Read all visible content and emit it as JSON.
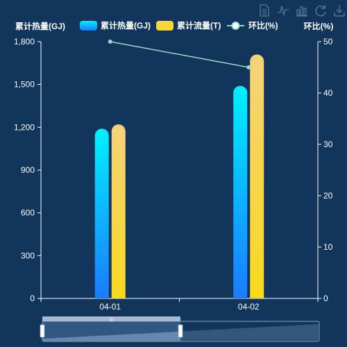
{
  "toolbox": [
    {
      "name": "data-view",
      "icon": "data-view-icon"
    },
    {
      "name": "line-switch",
      "icon": "line-chart-icon"
    },
    {
      "name": "bar-switch",
      "icon": "bar-chart-icon"
    },
    {
      "name": "restore",
      "icon": "refresh-icon"
    },
    {
      "name": "save-image",
      "icon": "download-icon"
    }
  ],
  "colors": {
    "background": "#12355c",
    "bar1_top": "#00f0ff",
    "bar1_bottom": "#1a7bff",
    "bar2_top": "#f5d27a",
    "bar2_bottom": "#f9d91e",
    "line": "#9bd9c8",
    "axis": "#ffffff"
  },
  "chart_data": {
    "type": "bar",
    "categories": [
      "04-01",
      "04-02"
    ],
    "left_axis": {
      "name": "累计热量(GJ)",
      "min": 0,
      "max": 1800,
      "ticks": [
        "0",
        "300",
        "600",
        "900",
        "1,200",
        "1,500",
        "1,800"
      ]
    },
    "right_axis": {
      "name": "环比(%)",
      "min": 0,
      "max": 50,
      "ticks": [
        "0",
        "10",
        "20",
        "30",
        "40",
        "50"
      ]
    },
    "series": [
      {
        "name": "累计热量(GJ)",
        "type": "bar",
        "axis": "left",
        "values": [
          1190,
          1490
        ]
      },
      {
        "name": "累计流量(T)",
        "type": "bar",
        "axis": "left",
        "values": [
          1220,
          1710
        ]
      },
      {
        "name": "环比(%)",
        "type": "line",
        "axis": "right",
        "values": [
          50,
          45
        ]
      }
    ],
    "legend_position": "top",
    "grid": false,
    "datazoom": {
      "start": 0,
      "end": 50
    }
  }
}
